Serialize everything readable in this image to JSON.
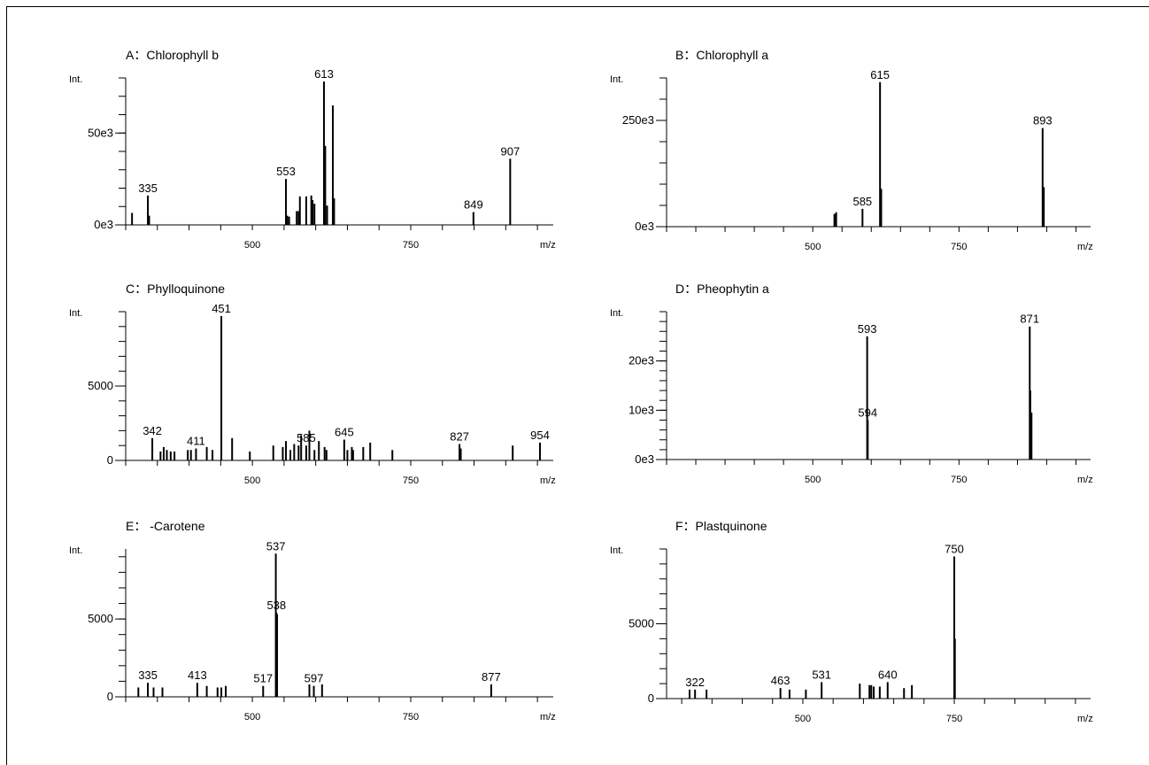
{
  "chart_data": [
    {
      "type": "bar",
      "title": "A：Chlorophyll b",
      "ylabel": "Int.",
      "xlabel": "m/z",
      "xlim": [
        300,
        975
      ],
      "ylim": [
        0,
        80000
      ],
      "xticks": [
        500,
        750
      ],
      "yticks": [
        0,
        50000
      ],
      "yticklabels": [
        "0e3",
        "50e3"
      ],
      "peaks": [
        {
          "x": 310,
          "y": 6500
        },
        {
          "x": 335,
          "y": 16000,
          "label": "335"
        },
        {
          "x": 337,
          "y": 5000
        },
        {
          "x": 553,
          "y": 25000,
          "label": "553"
        },
        {
          "x": 555,
          "y": 5000
        },
        {
          "x": 558,
          "y": 4500
        },
        {
          "x": 570,
          "y": 7500
        },
        {
          "x": 573,
          "y": 7500
        },
        {
          "x": 575,
          "y": 15500
        },
        {
          "x": 585,
          "y": 15500
        },
        {
          "x": 593,
          "y": 16000
        },
        {
          "x": 595,
          "y": 13500
        },
        {
          "x": 598,
          "y": 11500
        },
        {
          "x": 613,
          "y": 78000,
          "label": "613"
        },
        {
          "x": 615,
          "y": 43000
        },
        {
          "x": 618,
          "y": 10500
        },
        {
          "x": 627,
          "y": 65000
        },
        {
          "x": 629,
          "y": 14500
        },
        {
          "x": 849,
          "y": 7000,
          "label": "849"
        },
        {
          "x": 907,
          "y": 36000,
          "label": "907"
        }
      ]
    },
    {
      "type": "bar",
      "title": "B：Chlorophyll a",
      "ylabel": "Int.",
      "xlabel": "m/z",
      "xlim": [
        250,
        975
      ],
      "ylim": [
        0,
        350000
      ],
      "xticks": [
        500,
        750
      ],
      "yticks": [
        0,
        250000
      ],
      "yticklabels": [
        "0e3",
        "250e3"
      ],
      "peaks": [
        {
          "x": 537,
          "y": 30000
        },
        {
          "x": 540,
          "y": 34000
        },
        {
          "x": 585,
          "y": 42000,
          "label": "585"
        },
        {
          "x": 615,
          "y": 340000,
          "label": "615"
        },
        {
          "x": 616,
          "y": 90000
        },
        {
          "x": 617,
          "y": 88000
        },
        {
          "x": 893,
          "y": 232000,
          "label": "893"
        },
        {
          "x": 895,
          "y": 93000
        }
      ]
    },
    {
      "type": "bar",
      "title": "C：Phylloquinone",
      "ylabel": "Int.",
      "xlabel": "m/z",
      "xlim": [
        300,
        975
      ],
      "ylim": [
        0,
        10000
      ],
      "xticks": [
        500,
        750
      ],
      "yticks": [
        0,
        5000
      ],
      "yticklabels": [
        "0",
        "5000"
      ],
      "peaks": [
        {
          "x": 342,
          "y": 1500,
          "label": "342"
        },
        {
          "x": 355,
          "y": 600
        },
        {
          "x": 360,
          "y": 900
        },
        {
          "x": 365,
          "y": 700
        },
        {
          "x": 371,
          "y": 600
        },
        {
          "x": 377,
          "y": 600
        },
        {
          "x": 398,
          "y": 700
        },
        {
          "x": 403,
          "y": 700
        },
        {
          "x": 411,
          "y": 800,
          "label": "411"
        },
        {
          "x": 428,
          "y": 900
        },
        {
          "x": 437,
          "y": 700
        },
        {
          "x": 451,
          "y": 9700,
          "label": "451"
        },
        {
          "x": 468,
          "y": 1500
        },
        {
          "x": 496,
          "y": 600
        },
        {
          "x": 533,
          "y": 1000
        },
        {
          "x": 548,
          "y": 900
        },
        {
          "x": 553,
          "y": 1300
        },
        {
          "x": 560,
          "y": 700
        },
        {
          "x": 566,
          "y": 1100
        },
        {
          "x": 573,
          "y": 1000
        },
        {
          "x": 577,
          "y": 1700
        },
        {
          "x": 585,
          "y": 1000,
          "label": "585"
        },
        {
          "x": 590,
          "y": 2000
        },
        {
          "x": 598,
          "y": 700
        },
        {
          "x": 605,
          "y": 1300
        },
        {
          "x": 614,
          "y": 900
        },
        {
          "x": 617,
          "y": 700
        },
        {
          "x": 645,
          "y": 1400,
          "label": "645"
        },
        {
          "x": 650,
          "y": 700
        },
        {
          "x": 657,
          "y": 900
        },
        {
          "x": 659,
          "y": 700
        },
        {
          "x": 675,
          "y": 900
        },
        {
          "x": 686,
          "y": 1200
        },
        {
          "x": 721,
          "y": 700
        },
        {
          "x": 827,
          "y": 1100,
          "label": "827"
        },
        {
          "x": 829,
          "y": 800
        },
        {
          "x": 911,
          "y": 1000
        },
        {
          "x": 954,
          "y": 1200,
          "label": "954"
        }
      ]
    },
    {
      "type": "bar",
      "title": "D：Pheophytin a",
      "ylabel": "Int.",
      "xlabel": "m/z",
      "xlim": [
        250,
        975
      ],
      "ylim": [
        0,
        30000
      ],
      "xticks": [
        500,
        750
      ],
      "yticks": [
        0,
        10000,
        20000
      ],
      "yticklabels": [
        "0e3",
        "10e3",
        "20e3"
      ],
      "peaks": [
        {
          "x": 593,
          "y": 25000,
          "label": "593"
        },
        {
          "x": 594,
          "y": 8000,
          "label": "594"
        },
        {
          "x": 871,
          "y": 27000,
          "label": "871"
        },
        {
          "x": 872,
          "y": 14000
        },
        {
          "x": 874,
          "y": 9500
        }
      ]
    },
    {
      "type": "bar",
      "title": "E：   -Carotene",
      "ylabel": "Int.",
      "xlabel": "m/z",
      "xlim": [
        300,
        975
      ],
      "ylim": [
        0,
        9500
      ],
      "xticks": [
        500,
        750
      ],
      "yticks": [
        0,
        5000
      ],
      "yticklabels": [
        "0",
        "5000"
      ],
      "peaks": [
        {
          "x": 320,
          "y": 600
        },
        {
          "x": 335,
          "y": 900,
          "label": "335"
        },
        {
          "x": 344,
          "y": 600
        },
        {
          "x": 358,
          "y": 600
        },
        {
          "x": 413,
          "y": 900,
          "label": "413"
        },
        {
          "x": 428,
          "y": 700
        },
        {
          "x": 445,
          "y": 600
        },
        {
          "x": 451,
          "y": 600
        },
        {
          "x": 458,
          "y": 700
        },
        {
          "x": 517,
          "y": 700,
          "label": "517"
        },
        {
          "x": 537,
          "y": 9200,
          "label": "537"
        },
        {
          "x": 538,
          "y": 5400,
          "label": "538"
        },
        {
          "x": 539,
          "y": 5300
        },
        {
          "x": 590,
          "y": 800
        },
        {
          "x": 597,
          "y": 700,
          "label": "597"
        },
        {
          "x": 610,
          "y": 800
        },
        {
          "x": 877,
          "y": 800,
          "label": "877"
        }
      ]
    },
    {
      "type": "bar",
      "title": "F：Plastquinone",
      "ylabel": "Int.",
      "xlabel": "m/z",
      "xlim": [
        275,
        975
      ],
      "ylim": [
        0,
        10000
      ],
      "xticks": [
        500,
        750
      ],
      "yticks": [
        0,
        5000
      ],
      "yticklabels": [
        "0",
        "5000"
      ],
      "peaks": [
        {
          "x": 322,
          "y": 600,
          "label": "322"
        },
        {
          "x": 313,
          "y": 600
        },
        {
          "x": 341,
          "y": 600
        },
        {
          "x": 463,
          "y": 700,
          "label": "463"
        },
        {
          "x": 478,
          "y": 600
        },
        {
          "x": 505,
          "y": 600
        },
        {
          "x": 531,
          "y": 1100,
          "label": "531"
        },
        {
          "x": 594,
          "y": 1000
        },
        {
          "x": 610,
          "y": 900
        },
        {
          "x": 613,
          "y": 900
        },
        {
          "x": 617,
          "y": 800
        },
        {
          "x": 627,
          "y": 800
        },
        {
          "x": 640,
          "y": 1100,
          "label": "640"
        },
        {
          "x": 667,
          "y": 700
        },
        {
          "x": 680,
          "y": 900
        },
        {
          "x": 750,
          "y": 9500,
          "label": "750"
        },
        {
          "x": 751,
          "y": 4000
        }
      ]
    }
  ]
}
